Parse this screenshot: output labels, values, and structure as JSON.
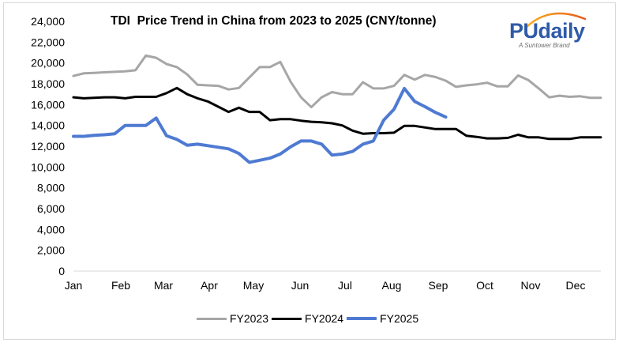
{
  "chart_data": {
    "type": "line",
    "title": "TDI  Price Trend in China from 2023 to 2025 (CNY/tonne)",
    "xlabel": "",
    "ylabel": "",
    "ylim": [
      0,
      24000
    ],
    "yticks": [
      "0",
      "2,000",
      "4,000",
      "6,000",
      "8,000",
      "10,000",
      "12,000",
      "14,000",
      "16,000",
      "18,000",
      "20,000",
      "22,000",
      "24,000"
    ],
    "ytick_values": [
      0,
      2000,
      4000,
      6000,
      8000,
      10000,
      12000,
      14000,
      16000,
      18000,
      20000,
      22000,
      24000
    ],
    "xticks": [
      "Jan",
      "Feb",
      "Mar",
      "Apr",
      "May",
      "Jun",
      "Jul",
      "Aug",
      "Sep",
      "Oct",
      "Nov",
      "Dec"
    ],
    "x_unit": "week",
    "x_range": [
      1,
      52
    ],
    "grid": false,
    "legend_position": "bottom",
    "series": [
      {
        "name": "FY2023",
        "color": "#a6a6a6",
        "values": [
          18750,
          19000,
          19050,
          19100,
          19150,
          19200,
          19300,
          20700,
          20500,
          19900,
          19600,
          18900,
          17900,
          17850,
          17800,
          17450,
          17600,
          18600,
          19600,
          19600,
          20100,
          18200,
          16700,
          15750,
          16700,
          17200,
          17000,
          17000,
          18150,
          17550,
          17550,
          17800,
          18850,
          18400,
          18850,
          18650,
          18300,
          17700,
          17850,
          17950,
          18100,
          17750,
          17750,
          18800,
          18350,
          17550,
          16700,
          16850,
          16750,
          16800,
          16650,
          16650
        ]
      },
      {
        "name": "FY2024",
        "color": "#000000",
        "values": [
          16700,
          16600,
          16650,
          16700,
          16700,
          16600,
          16750,
          16750,
          16750,
          17100,
          17600,
          17000,
          16600,
          16300,
          15800,
          15300,
          15700,
          15300,
          15300,
          14500,
          14600,
          14600,
          14450,
          14350,
          14300,
          14200,
          14000,
          13500,
          13200,
          13250,
          13250,
          13300,
          13950,
          13950,
          13800,
          13650,
          13650,
          13650,
          13000,
          12900,
          12750,
          12750,
          12800,
          13100,
          12850,
          12850,
          12700,
          12700,
          12700,
          12850,
          12850,
          12850
        ]
      },
      {
        "name": "FY2025",
        "color": "#4f7ad2",
        "values": [
          12950,
          12950,
          13050,
          13100,
          13200,
          14000,
          14000,
          14000,
          14700,
          13000,
          12650,
          12100,
          12200,
          12050,
          11900,
          11750,
          11300,
          10450,
          10650,
          10850,
          11250,
          11950,
          12500,
          12500,
          12200,
          11150,
          11250,
          11500,
          12200,
          12500,
          14500,
          15550,
          17550,
          16300,
          15800,
          15250,
          14800
        ]
      }
    ]
  },
  "logo": {
    "name": "PUdaily",
    "tagline": "A Suntower Brand"
  }
}
